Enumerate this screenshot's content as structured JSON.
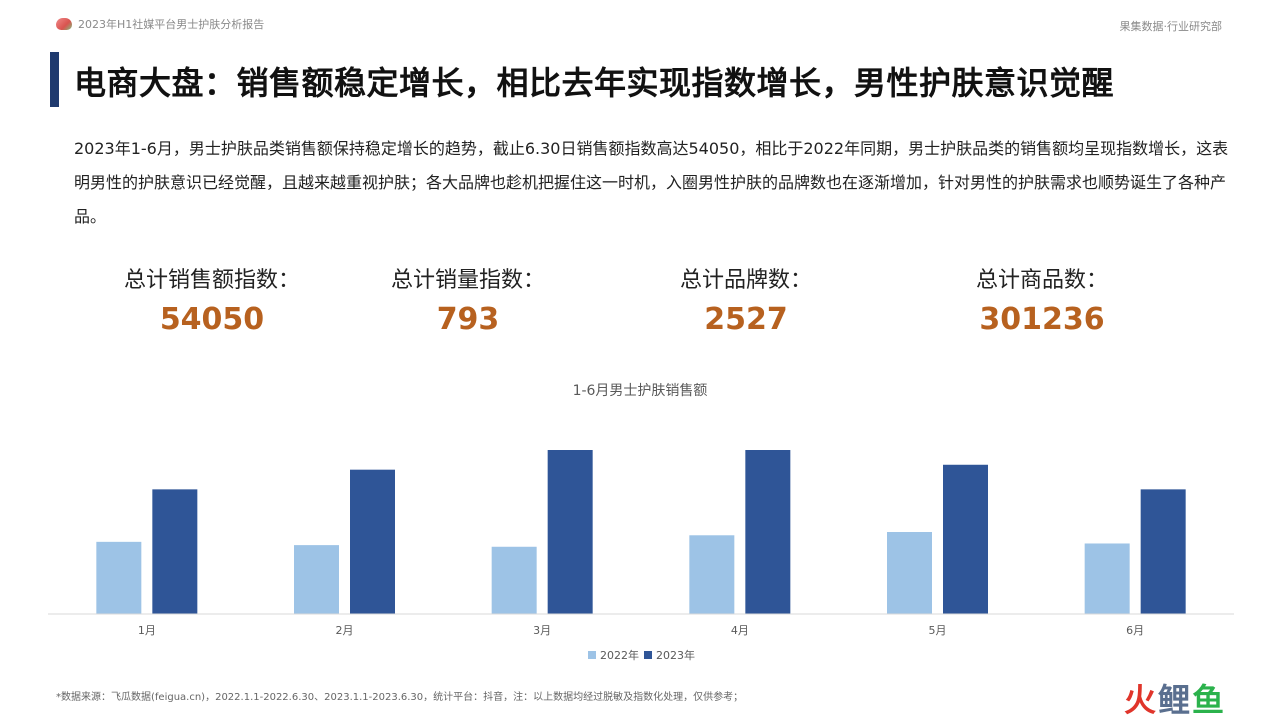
{
  "header": {
    "report_title": "2023年H1社媒平台男士护肤分析报告",
    "org": "果集数据·行业研究部"
  },
  "title": "电商大盘：销售额稳定增长，相比去年实现指数增长，男性护肤意识觉醒",
  "summary": "2023年1-6月，男士护肤品类销售额保持稳定增长的趋势，截止6.30日销售额指数高达54050，相比于2022年同期，男士护肤品类的销售额均呈现指数增长，这表明男性的护肤意识已经觉醒，且越来越重视护肤；各大品牌也趁机把握住这一时机，入圈男性护肤的品牌数也在逐渐增加，针对男性的护肤需求也顺势诞生了各种产品。",
  "stats": [
    {
      "label": "总计销售额指数：",
      "value": "54050"
    },
    {
      "label": "总计销量指数：",
      "value": "793"
    },
    {
      "label": "总计品牌数：",
      "value": "2527"
    },
    {
      "label": "总计商品数：",
      "value": "301236"
    }
  ],
  "chart_data": {
    "type": "bar",
    "title": "1-6月男士护肤销售额",
    "categories": [
      "1月",
      "2月",
      "3月",
      "4月",
      "5月",
      "6月"
    ],
    "series": [
      {
        "name": "2022年",
        "color": "#9dc3e6",
        "values": [
          44,
          42,
          41,
          48,
          50,
          43
        ]
      },
      {
        "name": "2023年",
        "color": "#2f5597",
        "values": [
          76,
          88,
          100,
          100,
          91,
          76
        ]
      }
    ],
    "ylim": [
      0,
      100
    ],
    "axis_visible": false,
    "grid": false,
    "legend": "bottom"
  },
  "footnote": "*数据来源：飞瓜数据(feigua.cn)，2022.1.1-2022.6.30、2023.1.1-2023.6.30，统计平台：抖音，注：以上数据均经过脱敏及指数化处理，仅供参考；",
  "brand_mark": {
    "part1": "火",
    "part2": "鲤",
    "part3": "鱼"
  }
}
